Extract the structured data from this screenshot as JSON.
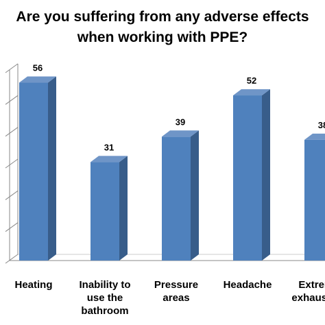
{
  "chart_data": {
    "type": "bar",
    "title_lines": [
      "Are you suffering from any adverse effects",
      "when working with PPE?"
    ],
    "categories": [
      [
        "Heating"
      ],
      [
        "Inability to",
        "use the",
        "bathroom"
      ],
      [
        "Pressure",
        "areas"
      ],
      [
        "Headache"
      ],
      [
        "Extreme",
        "exhaustion"
      ]
    ],
    "values": [
      56,
      31,
      39,
      52,
      38
    ],
    "data_labels": [
      "56",
      "31",
      "39",
      "52",
      "38"
    ],
    "ylim": [
      0,
      60
    ],
    "grid": false,
    "legend": "none",
    "colors": {
      "bar_front": "#4f81bd",
      "bar_side": "#385d8a",
      "bar_top": "#6f95c7",
      "axis": "#888888"
    }
  }
}
